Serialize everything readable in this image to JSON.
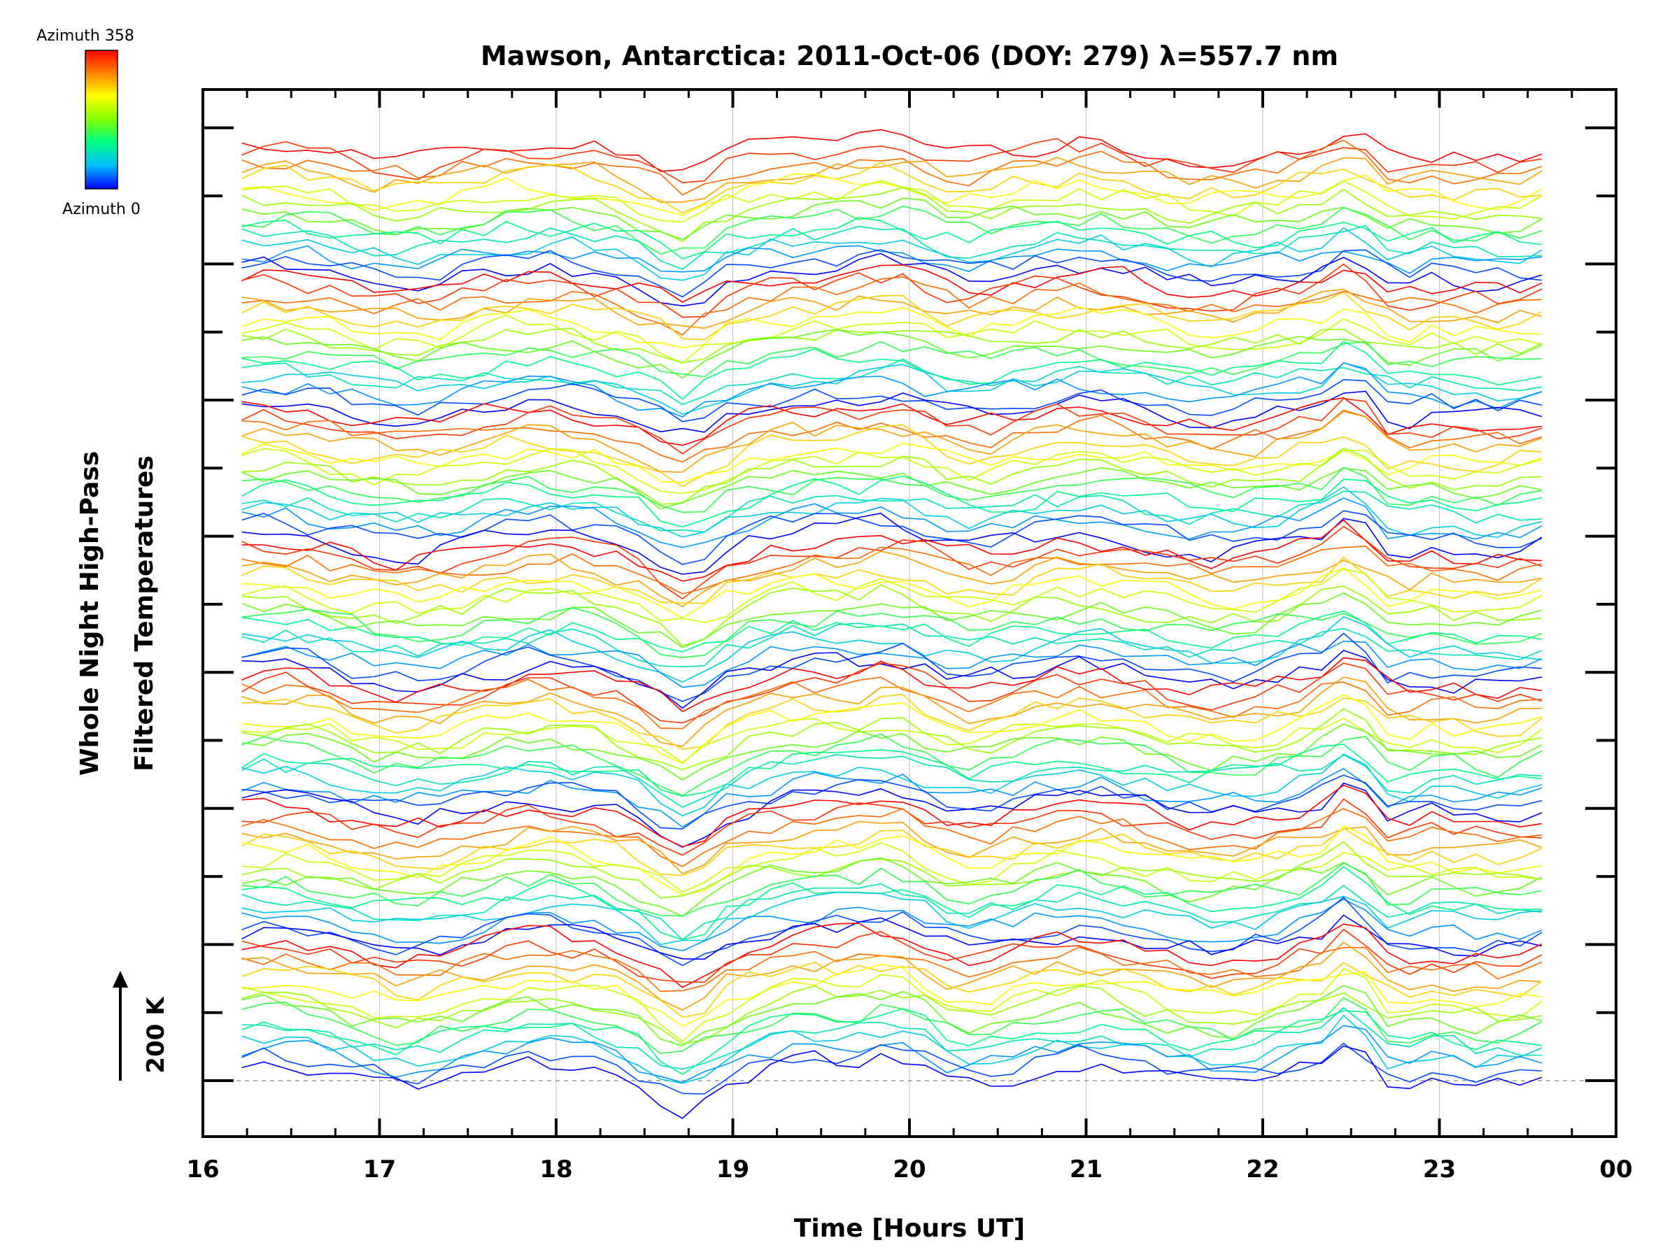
{
  "chart_data": {
    "type": "line",
    "title": "Mawson, Antarctica: 2011-Oct-06 (DOY: 279) λ=557.7 nm",
    "xlabel": "Time [Hours UT]",
    "ylabel_line1": "Whole Night High-Pass",
    "ylabel_line2": "Filtered Temperatures",
    "xlim": [
      16,
      24
    ],
    "x_ticks": [
      "16",
      "17",
      "18",
      "19",
      "20",
      "21",
      "22",
      "23",
      "00"
    ],
    "x_range_data": [
      16.22,
      23.58
    ],
    "scale_bar_label": "200 K",
    "colorbar": {
      "top_label": "Azimuth 358",
      "bottom_label": "Azimuth 0",
      "colors": [
        "#ff0000",
        "#ff8000",
        "#ffff00",
        "#80ff00",
        "#00ff80",
        "#00c0ff",
        "#0000ff"
      ]
    },
    "grid": true,
    "series_count": 117,
    "stack_groups": 7,
    "colors": {
      "axis": "#000000",
      "grid": "#c8c8c8",
      "baseline": "#999999"
    }
  }
}
